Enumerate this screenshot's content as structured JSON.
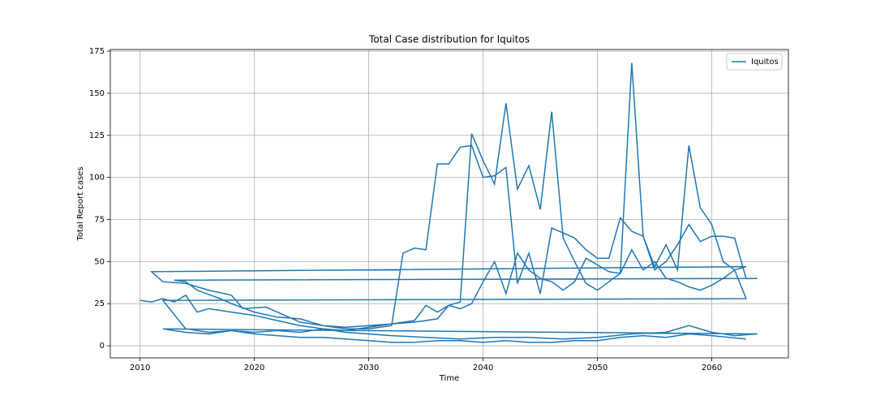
{
  "chart_data": {
    "type": "line",
    "title": "Total Case distribution for Iquitos",
    "x_label": "Time",
    "y_label": "Total Report cases",
    "x": [
      2010,
      2011,
      2012,
      2013,
      2014,
      2015,
      2016,
      2018,
      2020,
      2022,
      2024,
      2026,
      2028,
      2030,
      2032,
      2035,
      2038,
      2041,
      2044,
      2047,
      2050,
      2053,
      2056,
      2058,
      2060,
      2062,
      2064,
      2012,
      2014,
      2016,
      2018,
      2020,
      2022,
      2024,
      2026,
      2028,
      2030,
      2032,
      2034,
      2035,
      2036,
      2037,
      2038,
      2039,
      2040,
      2041,
      2042,
      2043,
      2044,
      2045,
      2046,
      2047,
      2048,
      2049,
      2050,
      2051,
      2052,
      2053,
      2054,
      2055,
      2056,
      2057,
      2058,
      2059,
      2060,
      2061,
      2062,
      2063,
      2011,
      2012,
      2014,
      2016,
      2018,
      2019,
      2021,
      2022,
      2024,
      2026,
      2028,
      2030,
      2032,
      2033,
      2034,
      2035,
      2036,
      2037,
      2038,
      2039,
      2040,
      2041,
      2042,
      2043,
      2044,
      2045,
      2046,
      2047,
      2048,
      2049,
      2050,
      2051,
      2052,
      2053,
      2054,
      2055,
      2056,
      2057,
      2058,
      2059,
      2060,
      2061,
      2062,
      2063,
      2064,
      2013,
      2014,
      2015,
      2017,
      2018,
      2020,
      2022,
      2024,
      2026,
      2028,
      2030,
      2032,
      2034,
      2036,
      2037,
      2038,
      2039,
      2040,
      2041,
      2042,
      2043,
      2044,
      2045,
      2046,
      2047,
      2048,
      2049,
      2050,
      2051,
      2052,
      2053,
      2054,
      2055,
      2056,
      2057,
      2058,
      2059,
      2060,
      2061,
      2062,
      2063,
      2012,
      2014,
      2016,
      2018,
      2020,
      2022,
      2024,
      2026,
      2028,
      2030,
      2032,
      2034,
      2036,
      2038,
      2040,
      2042,
      2044,
      2046,
      2048,
      2050,
      2052,
      2054,
      2056,
      2058,
      2060,
      2063
    ],
    "series": [
      {
        "name": "Iquitos",
        "color": "#1f77b4",
        "values": [
          27,
          26,
          28,
          26,
          30,
          20,
          22,
          20,
          18,
          15,
          12,
          10,
          8,
          7,
          6,
          5,
          4,
          5,
          5,
          4,
          5,
          7,
          8,
          12,
          8,
          6,
          7,
          10,
          8,
          7,
          9,
          8,
          9,
          8,
          10,
          9,
          11,
          13,
          15,
          24,
          20,
          24,
          22,
          25,
          38,
          50,
          31,
          55,
          45,
          40,
          38,
          33,
          38,
          52,
          48,
          44,
          43,
          57,
          45,
          50,
          40,
          38,
          35,
          33,
          36,
          40,
          45,
          47,
          44,
          38,
          37,
          33,
          30,
          22,
          23,
          20,
          14,
          12,
          10,
          10,
          12,
          55,
          58,
          57,
          108,
          108,
          118,
          119,
          100,
          101,
          106,
          37,
          55,
          31,
          70,
          67,
          64,
          57,
          52,
          52,
          76,
          68,
          65,
          45,
          50,
          60,
          72,
          62,
          65,
          65,
          64,
          40,
          40,
          39,
          38,
          33,
          28,
          25,
          20,
          17,
          16,
          12,
          11,
          12,
          13,
          14,
          16,
          24,
          26,
          126,
          110,
          96,
          144,
          93,
          107,
          81,
          139,
          64,
          50,
          37,
          33,
          38,
          43,
          168,
          65,
          47,
          60,
          45,
          119,
          82,
          72,
          50,
          45,
          28,
          27,
          10,
          8,
          9,
          7,
          6,
          5,
          5,
          4,
          3,
          2,
          2,
          3,
          3,
          2,
          3,
          2,
          2,
          3,
          3,
          5,
          6,
          5,
          7,
          6,
          4
        ]
      }
    ],
    "xlim": [
      2007.4,
      2066.7
    ],
    "ylim": [
      -7.2,
      176
    ],
    "xticks": [
      2010,
      2020,
      2030,
      2040,
      2050,
      2060
    ],
    "yticks": [
      0,
      25,
      50,
      75,
      100,
      125,
      150,
      175
    ],
    "grid": true,
    "legend": "upper right"
  }
}
